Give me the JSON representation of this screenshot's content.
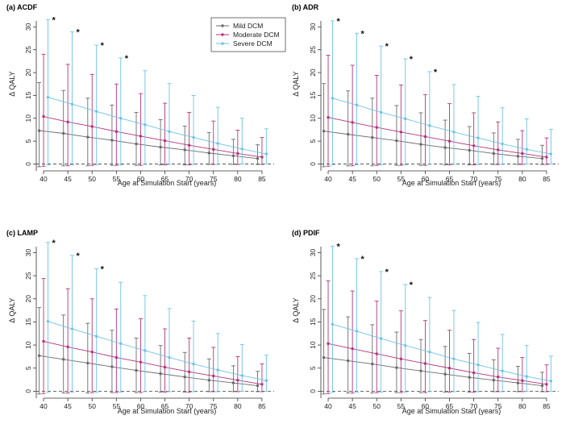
{
  "colors": {
    "mild": "#6b6b6b",
    "moderate": "#b5337e",
    "severe": "#6ec3e6",
    "axis": "#333333",
    "zero_line": "#555555"
  },
  "legend": {
    "entries": [
      "Mild DCM",
      "Moderate DCM",
      "Severe DCM"
    ],
    "placement": "top-right of panel (a)"
  },
  "chart_data": [
    {
      "panel": "(a) ACDF",
      "type": "line",
      "xlabel": "Age at Simulation Start (years)",
      "ylabel": "Δ QALY",
      "xlim": [
        38.5,
        87.5
      ],
      "ylim": [
        -1.5,
        32
      ],
      "x_ticks": [
        40,
        45,
        50,
        55,
        60,
        65,
        70,
        75,
        80,
        85
      ],
      "y_ticks": [
        0,
        5,
        10,
        15,
        20,
        25,
        30
      ],
      "zero_reference": 0,
      "x": [
        40,
        45,
        50,
        55,
        60,
        65,
        70,
        75,
        80,
        85
      ],
      "series": [
        {
          "name": "Mild DCM",
          "offset": -0.9,
          "values": [
            7.3,
            6.7,
            5.9,
            5.2,
            4.4,
            3.7,
            3.1,
            2.4,
            1.8,
            1.2
          ],
          "err_low": [
            -0.6,
            -0.4,
            -0.4,
            -0.3,
            -0.3,
            -0.2,
            -0.2,
            -0.1,
            -0.1,
            -0.1
          ],
          "err_high": [
            17.8,
            16.1,
            14.4,
            12.9,
            11.3,
            9.7,
            8.3,
            6.9,
            5.4,
            4.2
          ]
        },
        {
          "name": "Moderate DCM",
          "offset": 0,
          "values": [
            10.4,
            9.2,
            8.2,
            7.1,
            6.1,
            5.1,
            4.1,
            3.2,
            2.3,
            1.5
          ],
          "err_low": [
            -0.5,
            -0.4,
            -0.3,
            -0.3,
            -0.3,
            -0.2,
            -0.2,
            -0.1,
            -0.1,
            -0.1
          ],
          "err_high": [
            24.0,
            21.8,
            19.6,
            17.5,
            15.4,
            13.3,
            11.3,
            9.4,
            7.4,
            5.8
          ]
        },
        {
          "name": "Severe DCM",
          "offset": 0.9,
          "values": [
            14.6,
            13.1,
            11.5,
            10.0,
            8.6,
            7.1,
            5.8,
            4.5,
            3.3,
            2.2
          ],
          "err_low": [
            -0.2,
            -0.2,
            -0.2,
            -0.2,
            -0.1,
            -0.1,
            -0.1,
            -0.1,
            0.0,
            0.0
          ],
          "err_high": [
            31.6,
            28.9,
            26.0,
            23.2,
            20.4,
            17.6,
            15.0,
            12.4,
            10.0,
            7.7
          ]
        }
      ],
      "significance": {
        "label": "*",
        "x": [
          40,
          45,
          50,
          55
        ],
        "series": "Severe DCM"
      }
    },
    {
      "panel": "(b) ADR",
      "type": "line",
      "xlabel": "Age at Simulation Start (years)",
      "ylabel": "Δ QALY",
      "xlim": [
        38.5,
        87.5
      ],
      "ylim": [
        -1.5,
        32
      ],
      "x_ticks": [
        40,
        45,
        50,
        55,
        60,
        65,
        70,
        75,
        80,
        85
      ],
      "y_ticks": [
        0,
        5,
        10,
        15,
        20,
        25,
        30
      ],
      "zero_reference": 0,
      "x": [
        40,
        45,
        50,
        55,
        60,
        65,
        70,
        75,
        80,
        85
      ],
      "series": [
        {
          "name": "Mild DCM",
          "offset": -0.9,
          "values": [
            7.2,
            6.5,
            5.8,
            5.1,
            4.3,
            3.6,
            3.0,
            2.3,
            1.7,
            1.2
          ],
          "err_low": [
            -0.6,
            -0.4,
            -0.4,
            -0.3,
            -0.3,
            -0.2,
            -0.2,
            -0.1,
            -0.1,
            -0.1
          ],
          "err_high": [
            17.6,
            16.0,
            14.4,
            12.8,
            11.2,
            9.6,
            8.2,
            6.8,
            5.4,
            4.1
          ]
        },
        {
          "name": "Moderate DCM",
          "offset": 0,
          "values": [
            10.2,
            9.1,
            8.0,
            7.0,
            6.0,
            5.0,
            4.0,
            3.1,
            2.3,
            1.5
          ],
          "err_low": [
            -0.5,
            -0.4,
            -0.3,
            -0.3,
            -0.3,
            -0.2,
            -0.2,
            -0.1,
            -0.1,
            -0.1
          ],
          "err_high": [
            23.8,
            21.6,
            19.4,
            17.3,
            15.2,
            13.2,
            11.2,
            9.2,
            7.3,
            5.7
          ]
        },
        {
          "name": "Severe DCM",
          "offset": 0.9,
          "values": [
            14.4,
            12.9,
            11.3,
            9.9,
            8.4,
            7.0,
            5.7,
            4.4,
            3.2,
            2.2
          ],
          "err_low": [
            -0.2,
            -0.2,
            -0.2,
            -0.2,
            -0.1,
            -0.1,
            -0.1,
            -0.1,
            0.0,
            0.0
          ],
          "err_high": [
            31.3,
            28.6,
            25.8,
            23.0,
            20.2,
            17.4,
            14.8,
            12.3,
            9.9,
            7.6
          ]
        }
      ],
      "significance": {
        "label": "*",
        "x": [
          40,
          45,
          50,
          55,
          60
        ],
        "series": "Severe DCM"
      }
    },
    {
      "panel": "(c) LAMP",
      "type": "line",
      "xlabel": "Age at Simulation Start (years)",
      "ylabel": "Δ QALY",
      "xlim": [
        38.5,
        87.5
      ],
      "ylim": [
        -1.5,
        32
      ],
      "x_ticks": [
        40,
        45,
        50,
        55,
        60,
        65,
        70,
        75,
        80,
        85
      ],
      "y_ticks": [
        0,
        5,
        10,
        15,
        20,
        25,
        30
      ],
      "zero_reference": 0,
      "x": [
        40,
        45,
        50,
        55,
        60,
        65,
        70,
        75,
        80,
        85
      ],
      "series": [
        {
          "name": "Mild DCM",
          "offset": -0.9,
          "values": [
            7.7,
            6.9,
            6.1,
            5.3,
            4.5,
            3.8,
            3.1,
            2.4,
            1.8,
            1.2
          ],
          "err_low": [
            -0.6,
            -0.4,
            -0.4,
            -0.3,
            -0.3,
            -0.2,
            -0.2,
            -0.1,
            -0.1,
            -0.1
          ],
          "err_high": [
            18.1,
            16.5,
            14.7,
            13.2,
            11.5,
            9.9,
            8.4,
            7.0,
            5.5,
            4.3
          ]
        },
        {
          "name": "Moderate DCM",
          "offset": 0,
          "values": [
            10.8,
            9.6,
            8.5,
            7.3,
            6.3,
            5.2,
            4.2,
            3.3,
            2.4,
            1.5
          ],
          "err_low": [
            -0.5,
            -0.4,
            -0.3,
            -0.3,
            -0.3,
            -0.2,
            -0.2,
            -0.1,
            -0.1,
            -0.1
          ],
          "err_high": [
            24.4,
            22.2,
            20.0,
            17.8,
            15.7,
            13.5,
            11.5,
            9.5,
            7.5,
            5.9
          ]
        },
        {
          "name": "Severe DCM",
          "offset": 0.9,
          "values": [
            15.1,
            13.5,
            11.9,
            10.3,
            8.8,
            7.3,
            5.9,
            4.6,
            3.4,
            2.3
          ],
          "err_low": [
            -0.2,
            -0.2,
            -0.2,
            -0.2,
            -0.1,
            -0.1,
            -0.1,
            -0.1,
            0.0,
            0.0
          ],
          "err_high": [
            32.2,
            29.4,
            26.5,
            23.6,
            20.7,
            17.9,
            15.2,
            12.5,
            10.1,
            7.8
          ]
        }
      ],
      "significance": {
        "label": "*",
        "x": [
          40,
          45,
          50
        ],
        "series": "Severe DCM"
      }
    },
    {
      "panel": "(d) PDIF",
      "type": "line",
      "xlabel": "Age at Simulation Start (years)",
      "ylabel": "Δ QALY",
      "xlim": [
        38.5,
        87.5
      ],
      "ylim": [
        -1.5,
        32
      ],
      "x_ticks": [
        40,
        45,
        50,
        55,
        60,
        65,
        70,
        75,
        80,
        85
      ],
      "y_ticks": [
        0,
        5,
        10,
        15,
        20,
        25,
        30
      ],
      "zero_reference": 0,
      "x": [
        40,
        45,
        50,
        55,
        60,
        65,
        70,
        75,
        80,
        85
      ],
      "series": [
        {
          "name": "Mild DCM",
          "offset": -0.9,
          "values": [
            7.3,
            6.6,
            5.9,
            5.1,
            4.4,
            3.7,
            3.0,
            2.4,
            1.8,
            1.2
          ],
          "err_low": [
            -0.6,
            -0.4,
            -0.4,
            -0.3,
            -0.3,
            -0.2,
            -0.2,
            -0.1,
            -0.1,
            -0.1
          ],
          "err_high": [
            17.7,
            16.1,
            14.4,
            12.8,
            11.2,
            9.7,
            8.2,
            6.8,
            5.4,
            4.1
          ]
        },
        {
          "name": "Moderate DCM",
          "offset": 0,
          "values": [
            10.3,
            9.2,
            8.1,
            7.0,
            6.0,
            5.0,
            4.0,
            3.1,
            2.3,
            1.5
          ],
          "err_low": [
            -0.5,
            -0.4,
            -0.3,
            -0.3,
            -0.3,
            -0.2,
            -0.2,
            -0.1,
            -0.1,
            -0.1
          ],
          "err_high": [
            23.9,
            21.7,
            19.5,
            17.4,
            15.3,
            13.2,
            11.2,
            9.3,
            7.3,
            5.7
          ]
        },
        {
          "name": "Severe DCM",
          "offset": 0.9,
          "values": [
            14.5,
            13.0,
            11.4,
            9.9,
            8.5,
            7.0,
            5.7,
            4.4,
            3.2,
            2.2
          ],
          "err_low": [
            -0.2,
            -0.2,
            -0.2,
            -0.2,
            -0.1,
            -0.1,
            -0.1,
            -0.1,
            0.0,
            0.0
          ],
          "err_high": [
            31.4,
            28.7,
            25.9,
            23.1,
            20.3,
            17.5,
            14.9,
            12.3,
            9.9,
            7.6
          ]
        }
      ],
      "significance": {
        "label": "*",
        "x": [
          40,
          45,
          50,
          55
        ],
        "series": "Severe DCM"
      }
    }
  ]
}
